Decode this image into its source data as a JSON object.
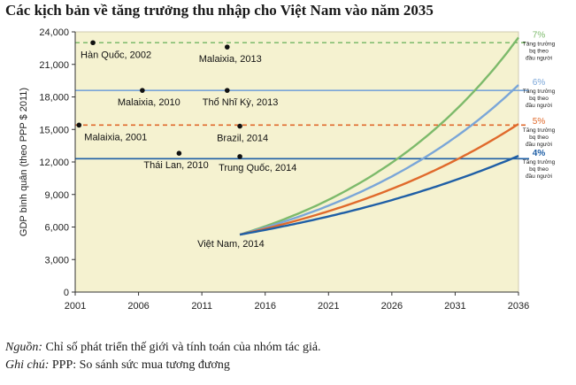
{
  "chart_data": {
    "type": "line",
    "title": "Các kịch bản về tăng trưởng thu nhập cho Việt Nam vào năm 2035",
    "ylabel": "GDP bình quân (theo PPP $ 2011)",
    "xlabel": "",
    "xlim": [
      2001,
      2036
    ],
    "ylim": [
      0,
      24000
    ],
    "x_ticks": [
      2001,
      2006,
      2011,
      2016,
      2021,
      2026,
      2031,
      2036
    ],
    "y_ticks": [
      0,
      3000,
      6000,
      9000,
      12000,
      15000,
      18000,
      21000,
      24000
    ],
    "y_tick_labels": [
      "0",
      "3,000",
      "6,000",
      "9,000",
      "12,000",
      "15,000",
      "18,000",
      "21,000",
      "24,000"
    ],
    "grid": false,
    "background_color": "#f5f2d0",
    "growth_series": [
      {
        "rate_label": "7%",
        "label": "Tăng trưởng bq theo đầu người",
        "rate": 0.07,
        "start_x": 2014,
        "start_y": 5300,
        "color": "#7dba6b"
      },
      {
        "rate_label": "6%",
        "label": "Tăng trưởng bq theo đầu người",
        "rate": 0.06,
        "start_x": 2014,
        "start_y": 5300,
        "color": "#7aa6d8"
      },
      {
        "rate_label": "5%",
        "label": "Tăng trưởng bq theo đầu người",
        "rate": 0.05,
        "start_x": 2014,
        "start_y": 5300,
        "color": "#e06a2c"
      },
      {
        "rate_label": "4%",
        "label": "Tăng trưởng bq theo đầu người",
        "rate": 0.04,
        "start_x": 2014,
        "start_y": 5300,
        "color": "#1f5fa6"
      }
    ],
    "reference_lines": [
      {
        "y": 23000,
        "color": "#7dba6b",
        "dash": "dashed"
      },
      {
        "y": 18600,
        "color": "#7aa6d8",
        "dash": "solid"
      },
      {
        "y": 15400,
        "color": "#e06a2c",
        "dash": "dashed"
      },
      {
        "y": 12300,
        "color": "#1f5fa6",
        "dash": "solid"
      }
    ],
    "points": [
      {
        "label": "Hàn Quốc, 2002",
        "x": 2002.4,
        "y": 23000
      },
      {
        "label": "Malaixia, 2013",
        "x": 2013,
        "y": 22600
      },
      {
        "label": "Malaixia, 2010",
        "x": 2006.3,
        "y": 18600
      },
      {
        "label": "Thổ Nhĩ Kỳ, 2013",
        "x": 2013,
        "y": 18600
      },
      {
        "label": "Malaixia, 2001",
        "x": 2001.3,
        "y": 15400
      },
      {
        "label": "Brazil, 2014",
        "x": 2014,
        "y": 15300
      },
      {
        "label": "Thái Lan, 2010",
        "x": 2009.2,
        "y": 12800
      },
      {
        "label": "Trung Quốc, 2014",
        "x": 2014,
        "y": 12500
      },
      {
        "label": "Việt Nam, 2014",
        "x": 2014,
        "y": 5300
      }
    ]
  },
  "notes": {
    "source_label": "Nguồn:",
    "source_text": " Chỉ số phát triển thế giới và tính toán của nhóm tác giả.",
    "note_label": "Ghi chú:",
    "note_text": " PPP: So sánh sức mua tương đương"
  }
}
